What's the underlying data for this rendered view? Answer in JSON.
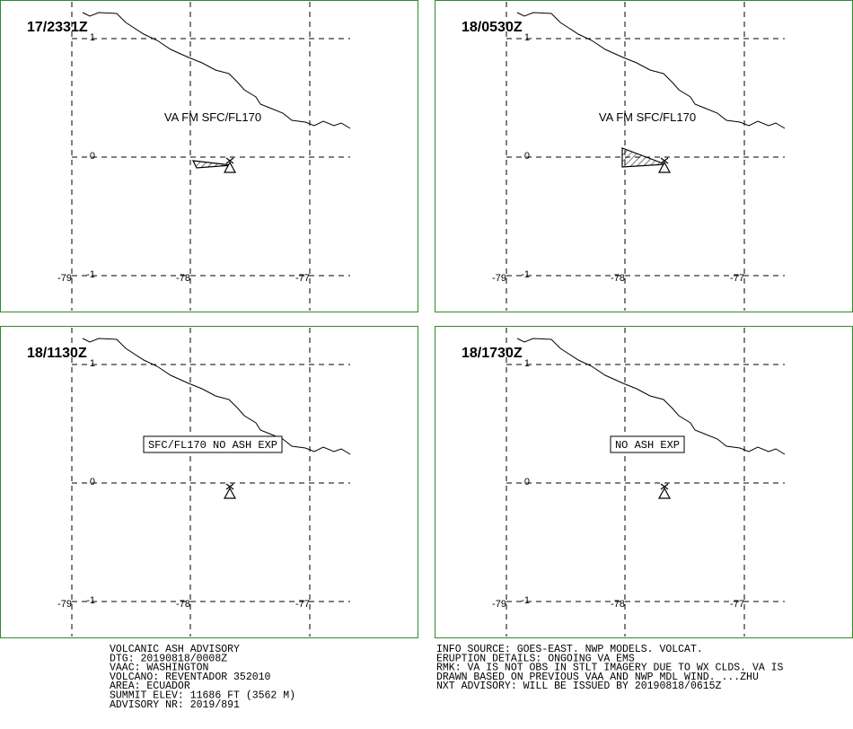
{
  "panels": [
    {
      "time": "17/2331Z",
      "label": "VA FM SFC/FL170"
    },
    {
      "time": "18/0530Z",
      "label": "VA FM SFC/FL170"
    },
    {
      "time": "18/1130Z",
      "label": "SFC/FL170 NO ASH EXP"
    },
    {
      "time": "18/1730Z",
      "label": "NO ASH EXP"
    }
  ],
  "axes": {
    "lat": [
      "1",
      "0",
      "-1"
    ],
    "lon": [
      "-79",
      "-78",
      "-77"
    ]
  },
  "advisory_left": [
    "VOLCANIC ASH ADVISORY",
    "DTG: 20190818/0008Z",
    "VAAC: WASHINGTON",
    "VOLCANO: REVENTADOR 352010",
    "AREA: ECUADOR",
    "SUMMIT ELEV: 11686 FT (3562 M)",
    "ADVISORY NR: 2019/891"
  ],
  "advisory_right": [
    "INFO SOURCE: GOES-EAST. NWP MODELS. VOLCAT.",
    "ERUPTION DETAILS: ONGOING VA EMS",
    "RMK: VA IS NOT OBS IN STLT IMAGERY DUE TO WX CLDS. VA IS",
    "DRAWN BASED ON PREVIOUS VAA AND NWP MDL WIND. ...ZHU",
    "NXT ADVISORY: WILL BE ISSUED BY 20190818/0615Z"
  ]
}
